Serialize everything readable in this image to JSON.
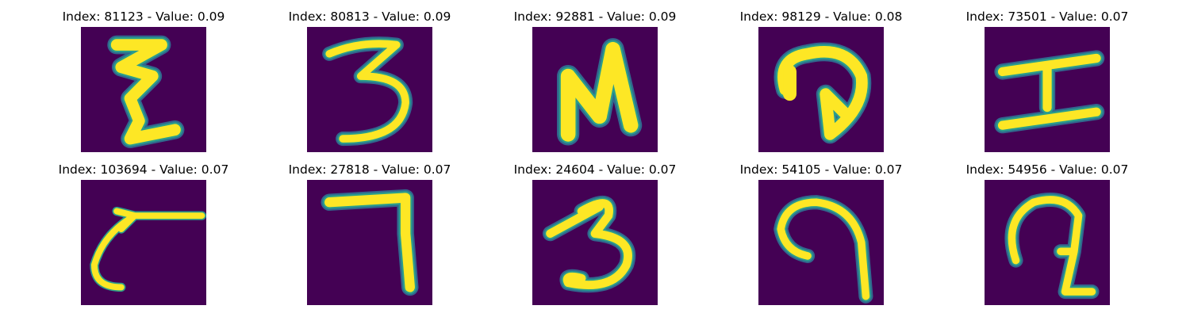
{
  "colors": {
    "background": "#440154",
    "foreground": "#fde725",
    "edge": "#2a9d8c",
    "edge_outer": "#31688e"
  },
  "panels": [
    {
      "title": "Index: 81123 - Value: 0.09",
      "glyph": "glyph-z-scribble"
    },
    {
      "title": "Index: 80813 - Value: 0.09",
      "glyph": "glyph-three"
    },
    {
      "title": "Index: 92881 - Value: 0.09",
      "glyph": "glyph-n"
    },
    {
      "title": "Index: 98129 - Value: 0.08",
      "glyph": "glyph-hook-arrow"
    },
    {
      "title": "Index: 73501 - Value: 0.07",
      "glyph": "glyph-i-beam"
    },
    {
      "title": "Index: 103694 - Value: 0.07",
      "glyph": "glyph-c-tail"
    },
    {
      "title": "Index: 27818 - Value: 0.07",
      "glyph": "glyph-seven"
    },
    {
      "title": "Index: 24604 - Value: 0.07",
      "glyph": "glyph-three-b"
    },
    {
      "title": "Index: 54105 - Value: 0.07",
      "glyph": "glyph-spiral"
    },
    {
      "title": "Index: 54956 - Value: 0.07",
      "glyph": "glyph-loop-hook"
    }
  ]
}
